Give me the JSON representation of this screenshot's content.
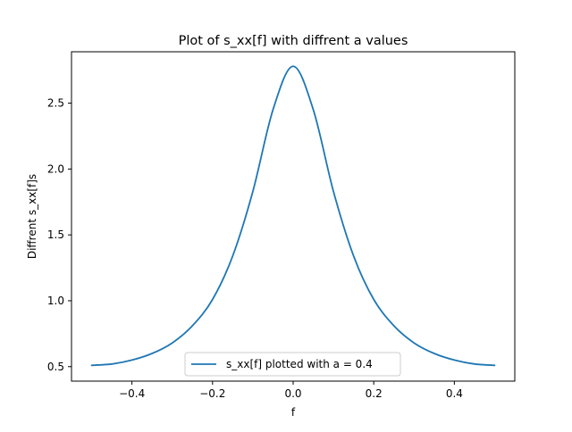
{
  "chart_data": {
    "type": "line",
    "title": "Plot of s_xx[f] with diffrent a values",
    "xlabel": "f",
    "ylabel": "Diffrent s_xx[f]s",
    "xlim": [
      -0.55,
      0.55
    ],
    "ylim": [
      0.39,
      2.89
    ],
    "xticks": [
      -0.4,
      -0.2,
      0.0,
      0.2,
      0.4
    ],
    "xtick_labels": [
      "−0.4",
      "−0.2",
      "0.0",
      "0.2",
      "0.4"
    ],
    "yticks": [
      0.5,
      1.0,
      1.5,
      2.0,
      2.5
    ],
    "ytick_labels": [
      "0.5",
      "1.0",
      "1.5",
      "2.0",
      "2.5"
    ],
    "grid": false,
    "legend_position": "lower center",
    "series": [
      {
        "name": "s_xx[f] plotted with a = 0.4",
        "color": "#1f77b4",
        "x": [
          -0.5,
          -0.45,
          -0.4,
          -0.35,
          -0.3,
          -0.25,
          -0.2,
          -0.15,
          -0.1,
          -0.05,
          0.0,
          0.05,
          0.1,
          0.15,
          0.2,
          0.25,
          0.3,
          0.35,
          0.4,
          0.45,
          0.5
        ],
        "y": [
          0.51,
          0.52,
          0.55,
          0.6,
          0.68,
          0.81,
          1.01,
          1.34,
          1.83,
          2.45,
          2.78,
          2.45,
          1.83,
          1.34,
          1.01,
          0.81,
          0.68,
          0.6,
          0.55,
          0.52,
          0.51
        ]
      }
    ]
  }
}
